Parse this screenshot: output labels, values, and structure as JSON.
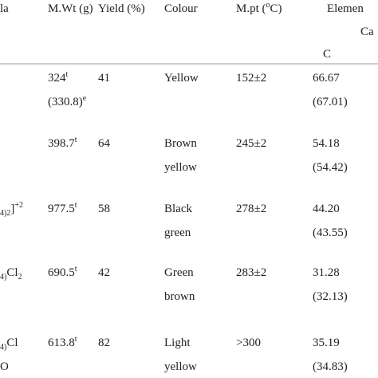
{
  "header": {
    "formula": [
      [
        {
          "text": "la"
        }
      ]
    ],
    "mwt": [
      [
        {
          "text": "M.Wt (g)"
        }
      ]
    ],
    "yield": [
      [
        {
          "text": "Yield (%)"
        }
      ]
    ],
    "colour": [
      [
        {
          "text": "Colour"
        }
      ]
    ],
    "mpt": [
      [
        {
          "text": "M.pt ("
        },
        {
          "sup": "o"
        },
        {
          "text": "C)"
        }
      ]
    ],
    "c": [
      [
        {
          "text": "Elemen"
        }
      ]
    ],
    "calc": [
      [
        {
          "text": "Ca"
        }
      ]
    ],
    "c_label": [
      [
        {
          "text": "C"
        }
      ]
    ]
  },
  "rows": [
    {
      "formula": [
        []
      ],
      "mwt": [
        [
          {
            "text": "324"
          },
          {
            "sup": "t"
          }
        ],
        [
          {
            "text": "(330.8)"
          },
          {
            "sup": "e"
          }
        ]
      ],
      "yield": [
        [
          {
            "text": "41"
          }
        ]
      ],
      "colour": [
        [
          {
            "text": "Yellow"
          }
        ]
      ],
      "mpt": [
        [
          {
            "text": "152±2"
          }
        ]
      ],
      "c": [
        [
          {
            "text": "66.67"
          }
        ],
        [
          {
            "text": "(67.01)"
          }
        ]
      ]
    },
    {
      "formula": [
        []
      ],
      "mwt": [
        [
          {
            "text": "398.7"
          },
          {
            "sup": "t"
          }
        ]
      ],
      "yield": [
        [
          {
            "text": "64"
          }
        ]
      ],
      "colour": [
        [
          {
            "text": "Brown"
          }
        ],
        [
          {
            "text": "yellow"
          }
        ]
      ],
      "mpt": [
        [
          {
            "text": "245±2"
          }
        ]
      ],
      "c": [
        [
          {
            "text": "54.18"
          }
        ],
        [
          {
            "text": "(54.42)"
          }
        ]
      ]
    },
    {
      "formula": [
        [
          {
            "sub": "4)2"
          },
          {
            "text": "]"
          },
          {
            "sup": "+2"
          }
        ]
      ],
      "mwt": [
        [
          {
            "text": "977.5"
          },
          {
            "sup": "t"
          }
        ]
      ],
      "yield": [
        [
          {
            "text": "58"
          }
        ]
      ],
      "colour": [
        [
          {
            "text": "Black"
          }
        ],
        [
          {
            "text": "green"
          }
        ]
      ],
      "mpt": [
        [
          {
            "text": "278±2"
          }
        ]
      ],
      "c": [
        [
          {
            "text": "44.20"
          }
        ],
        [
          {
            "text": "(43.55)"
          }
        ]
      ]
    },
    {
      "formula": [
        [
          {
            "sub": "4)"
          },
          {
            "text": "Cl"
          },
          {
            "sub": "2"
          }
        ]
      ],
      "mwt": [
        [
          {
            "text": "690.5"
          },
          {
            "sup": "t"
          }
        ]
      ],
      "yield": [
        [
          {
            "text": "42"
          }
        ]
      ],
      "colour": [
        [
          {
            "text": "Green"
          }
        ],
        [
          {
            "text": "brown"
          }
        ]
      ],
      "mpt": [
        [
          {
            "text": "283±2"
          }
        ]
      ],
      "c": [
        [
          {
            "text": "31.28"
          }
        ],
        [
          {
            "text": "(32.13)"
          }
        ]
      ]
    },
    {
      "formula": [
        [
          {
            "sub": "4)"
          },
          {
            "text": "Cl"
          }
        ],
        [
          {
            "text": "O"
          }
        ]
      ],
      "mwt": [
        [
          {
            "text": "613.8"
          },
          {
            "sup": "t"
          }
        ]
      ],
      "yield": [
        [
          {
            "text": "82"
          }
        ]
      ],
      "colour": [
        [
          {
            "text": "Light"
          }
        ],
        [
          {
            "text": "yellow"
          }
        ]
      ],
      "mpt": [
        [
          {
            "text": ">300"
          }
        ]
      ],
      "c": [
        [
          {
            "text": "35.19"
          }
        ],
        [
          {
            "text": "(34.83)"
          }
        ]
      ]
    }
  ]
}
